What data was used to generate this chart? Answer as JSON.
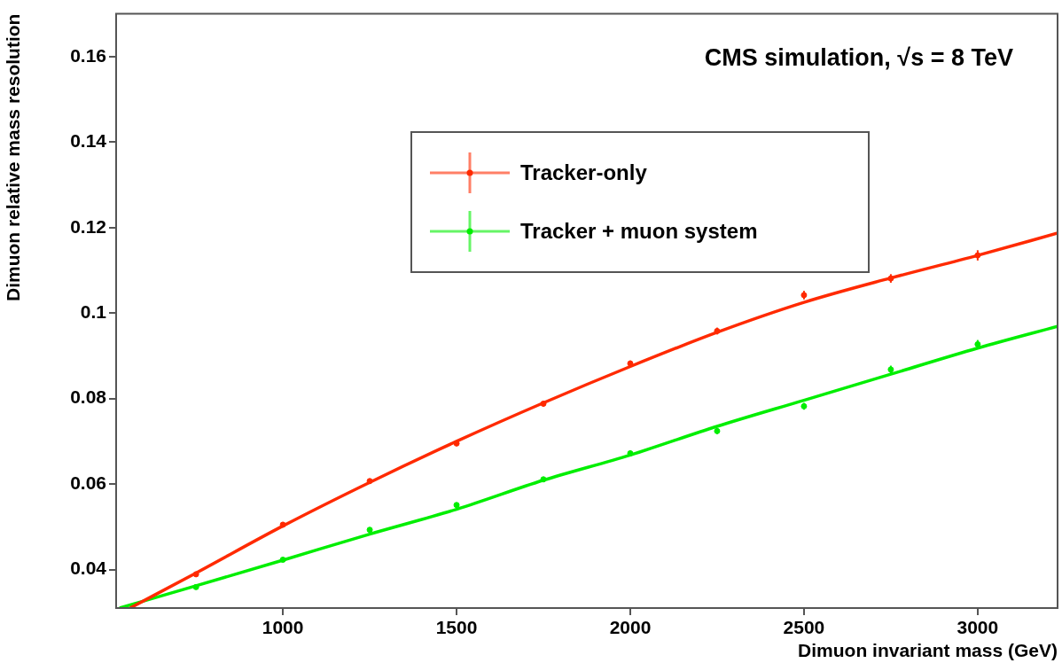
{
  "chart_data": {
    "type": "scatter",
    "xlabel": "Dimuon invariant mass (GeV)",
    "ylabel": "Dimuon relative mass resolution",
    "annotations": [
      "CMS simulation, √s = 8 TeV"
    ],
    "xlim": [
      520,
      3230
    ],
    "ylim": [
      0.031,
      0.17
    ],
    "xticks": [
      1000,
      1500,
      2000,
      2500,
      3000
    ],
    "yticks": [
      0.04,
      0.06,
      0.08,
      0.1,
      0.12,
      0.14,
      0.16
    ],
    "grid": false,
    "legend": "top",
    "series": [
      {
        "name": "Tracker-only",
        "marker": "circle",
        "color": "#ff2a00",
        "x": [
          750,
          1000,
          1250,
          1500,
          1750,
          2000,
          2250,
          2500,
          2750,
          3000
        ],
        "values": [
          0.0389,
          0.0505,
          0.0607,
          0.0695,
          0.0788,
          0.0882,
          0.0958,
          0.1042,
          0.1081,
          0.1135
        ],
        "errors": [
          0.0005,
          0.0005,
          0.0005,
          0.0006,
          0.0006,
          0.0007,
          0.0008,
          0.001,
          0.001,
          0.0012
        ]
      },
      {
        "name": "Tracker + muon system",
        "marker": "circle",
        "color": "#00ee00",
        "x": [
          750,
          1000,
          1250,
          1500,
          1750,
          2000,
          2250,
          2500,
          2750,
          3000
        ],
        "values": [
          0.0359,
          0.0423,
          0.0493,
          0.0551,
          0.0611,
          0.0672,
          0.0724,
          0.0782,
          0.0868,
          0.0927
        ],
        "errors": [
          0.0004,
          0.0004,
          0.0005,
          0.0005,
          0.0005,
          0.0006,
          0.0007,
          0.0008,
          0.0009,
          0.001
        ]
      },
      {
        "type": "line",
        "marker": "none",
        "color": "#ff2a00",
        "x": [
          560,
          750,
          1000,
          1250,
          1500,
          1750,
          2000,
          2250,
          2500,
          2750,
          3000,
          3230
        ],
        "values": [
          0.031,
          0.0392,
          0.0502,
          0.0604,
          0.07,
          0.079,
          0.0875,
          0.0955,
          0.1025,
          0.1082,
          0.1135,
          0.1187
        ]
      },
      {
        "type": "line",
        "marker": "none",
        "color": "#00ee00",
        "x": [
          530,
          750,
          1000,
          1250,
          1500,
          1750,
          2000,
          2250,
          2500,
          2750,
          3000,
          3230
        ],
        "values": [
          0.031,
          0.0362,
          0.0422,
          0.0483,
          0.0541,
          0.0609,
          0.0668,
          0.0735,
          0.0796,
          0.0857,
          0.0918,
          0.0969
        ]
      }
    ]
  }
}
